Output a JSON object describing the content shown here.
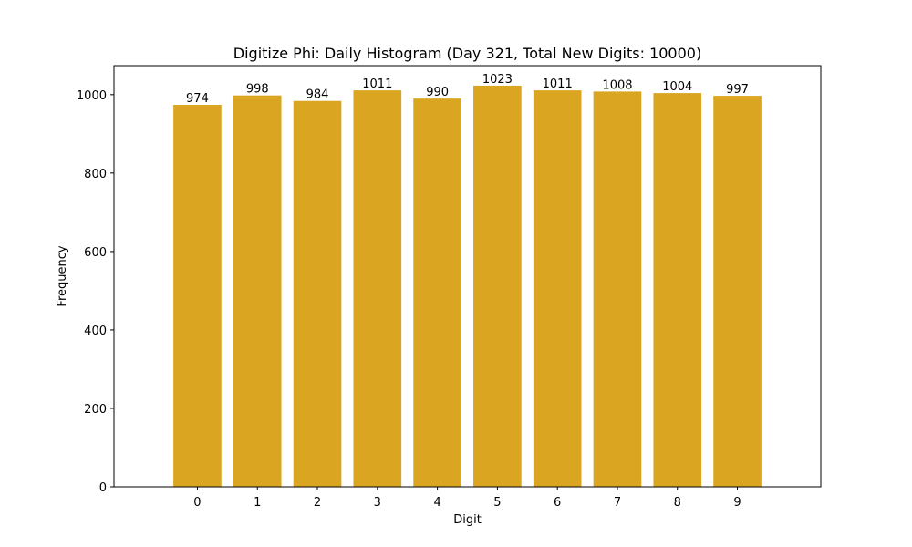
{
  "chart_data": {
    "type": "bar",
    "title": "Digitize Phi: Daily Histogram (Day 321, Total New Digits: 10000)",
    "xlabel": "Digit",
    "ylabel": "Frequency",
    "categories": [
      "0",
      "1",
      "2",
      "3",
      "4",
      "5",
      "6",
      "7",
      "8",
      "9"
    ],
    "values": [
      974,
      998,
      984,
      1011,
      990,
      1023,
      1011,
      1008,
      1004,
      997
    ],
    "data_labels": [
      "974",
      "998",
      "984",
      "1011",
      "990",
      "1023",
      "1011",
      "1008",
      "1004",
      "997"
    ],
    "ylim": [
      0,
      1074
    ],
    "yticks": [
      0,
      200,
      400,
      600,
      800,
      1000
    ],
    "ytick_labels": [
      "0",
      "200",
      "400",
      "600",
      "800",
      "1000"
    ],
    "grid": false,
    "legend": "none",
    "colors": {
      "bar": "#DAA520",
      "axis": "#000000",
      "text": "#000000",
      "background": "#ffffff"
    }
  }
}
